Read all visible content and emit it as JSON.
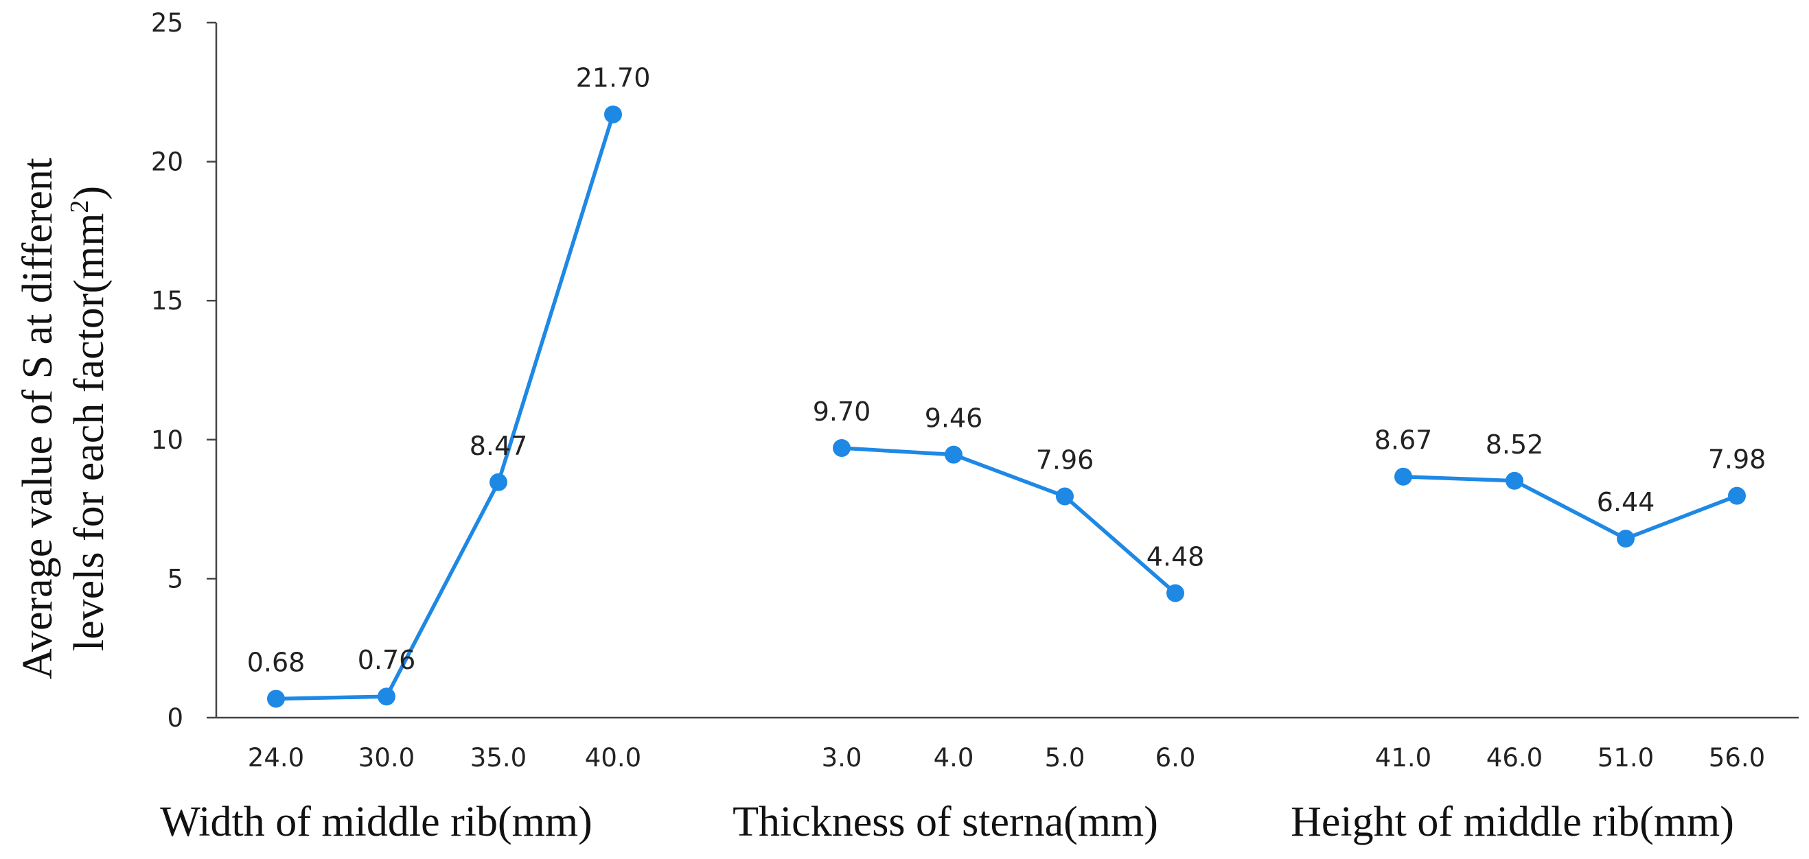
{
  "chart_data": {
    "type": "line",
    "ylim": [
      0,
      25
    ],
    "yticks": [
      "0",
      "5",
      "10",
      "15",
      "20",
      "25"
    ],
    "ylabel": {
      "line1": "Average value of S at different",
      "line2": "levels for each factor(mm",
      "sup": "2",
      "close": ")"
    },
    "series_color": "#1e88e5",
    "groups": [
      {
        "name": "Width of middle rib(mm)",
        "categories": [
          "24.0",
          "30.0",
          "35.0",
          "40.0"
        ],
        "values": [
          0.68,
          0.76,
          8.47,
          21.7
        ],
        "value_labels": [
          "0.68",
          "0.76",
          "8.47",
          "21.70"
        ]
      },
      {
        "name": "Thickness of sterna(mm)",
        "categories": [
          "3.0",
          "4.0",
          "5.0",
          "6.0"
        ],
        "values": [
          9.7,
          9.46,
          7.96,
          4.48
        ],
        "value_labels": [
          "9.70",
          "9.46",
          "7.96",
          "4.48"
        ]
      },
      {
        "name": "Height of middle rib(mm)",
        "categories": [
          "41.0",
          "46.0",
          "51.0",
          "56.0"
        ],
        "values": [
          8.67,
          8.52,
          6.44,
          7.98
        ],
        "value_labels": [
          "8.67",
          "8.52",
          "6.44",
          "7.98"
        ]
      }
    ]
  }
}
